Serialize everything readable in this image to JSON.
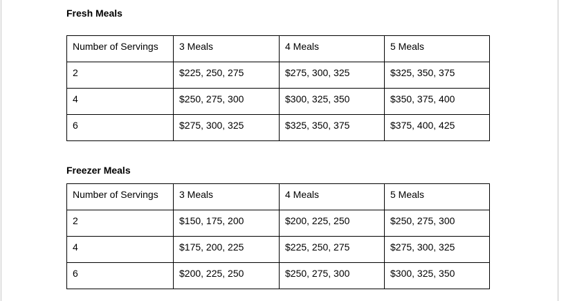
{
  "page": {
    "background_color": "#ffffff",
    "edge_line_color": "#c6c6c6",
    "text_color": "#000000",
    "table_border_color": "#000000"
  },
  "tables": [
    {
      "title": "Fresh Meals",
      "columns": [
        "Number of Servings",
        "3 Meals",
        "4 Meals",
        "5 Meals"
      ],
      "rows": [
        [
          "2",
          "$225, 250, 275",
          "$275, 300, 325",
          "$325, 350, 375"
        ],
        [
          "4",
          "$250, 275, 300",
          "$300, 325, 350",
          "$350, 375, 400"
        ],
        [
          "6",
          "$275, 300, 325",
          "$325, 350, 375",
          "$375, 400, 425"
        ]
      ]
    },
    {
      "title": "Freezer Meals",
      "columns": [
        "Number of Servings",
        "3 Meals",
        "4 Meals",
        "5 Meals"
      ],
      "rows": [
        [
          "2",
          "$150, 175, 200",
          "$200, 225, 250",
          "$250, 275, 300"
        ],
        [
          "4",
          "$175, 200, 225",
          "$225, 250, 275",
          "$275, 300, 325"
        ],
        [
          "6",
          "$200, 225, 250",
          "$250, 275, 300",
          "$300, 325, 350"
        ]
      ]
    }
  ]
}
